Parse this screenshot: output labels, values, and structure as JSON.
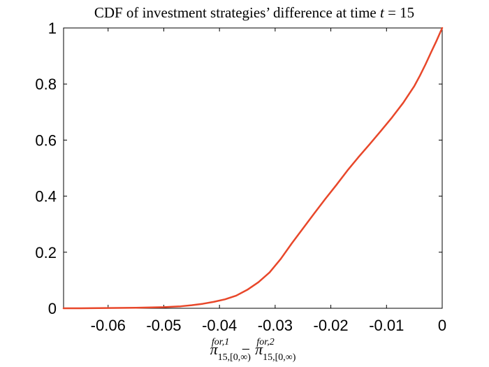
{
  "chart_data": {
    "type": "line",
    "title_prefix": "CDF of investment strategies’ difference at time",
    "title_var": "t",
    "title_eq": "= 15",
    "xlabel": {
      "term1": "π",
      "term1_sup": "for,1",
      "term1_sub": "15,[0,∞)",
      "minus": "−",
      "term2": "π",
      "term2_sup": "for,2",
      "term2_sub": "15,[0,∞)"
    },
    "ylabel": "",
    "xlim": [
      -0.068,
      0
    ],
    "ylim": [
      0,
      1
    ],
    "xticks": [
      -0.06,
      -0.05,
      -0.04,
      -0.03,
      -0.02,
      -0.01,
      0
    ],
    "xtick_labels": [
      "-0.06",
      "-0.05",
      "-0.04",
      "-0.03",
      "-0.02",
      "-0.01",
      "0"
    ],
    "yticks": [
      0,
      0.2,
      0.4,
      0.6,
      0.8,
      1
    ],
    "ytick_labels": [
      "0",
      "0.2",
      "0.4",
      "0.6",
      "0.8",
      "1"
    ],
    "grid": false,
    "series": [
      {
        "color": "#e8472a",
        "x": [
          -0.068,
          -0.065,
          -0.06,
          -0.055,
          -0.05,
          -0.047,
          -0.045,
          -0.043,
          -0.041,
          -0.039,
          -0.037,
          -0.035,
          -0.033,
          -0.031,
          -0.029,
          -0.027,
          -0.025,
          -0.023,
          -0.021,
          -0.019,
          -0.017,
          -0.015,
          -0.013,
          -0.011,
          -0.009,
          -0.007,
          -0.005,
          -0.004,
          -0.003,
          -0.002,
          -0.001,
          0
        ],
        "y": [
          0.0,
          0.0,
          0.001,
          0.002,
          0.004,
          0.007,
          0.011,
          0.016,
          0.023,
          0.032,
          0.045,
          0.066,
          0.093,
          0.128,
          0.176,
          0.232,
          0.285,
          0.338,
          0.39,
          0.44,
          0.492,
          0.54,
          0.586,
          0.633,
          0.681,
          0.733,
          0.793,
          0.83,
          0.87,
          0.913,
          0.955,
          1.0
        ]
      }
    ]
  }
}
